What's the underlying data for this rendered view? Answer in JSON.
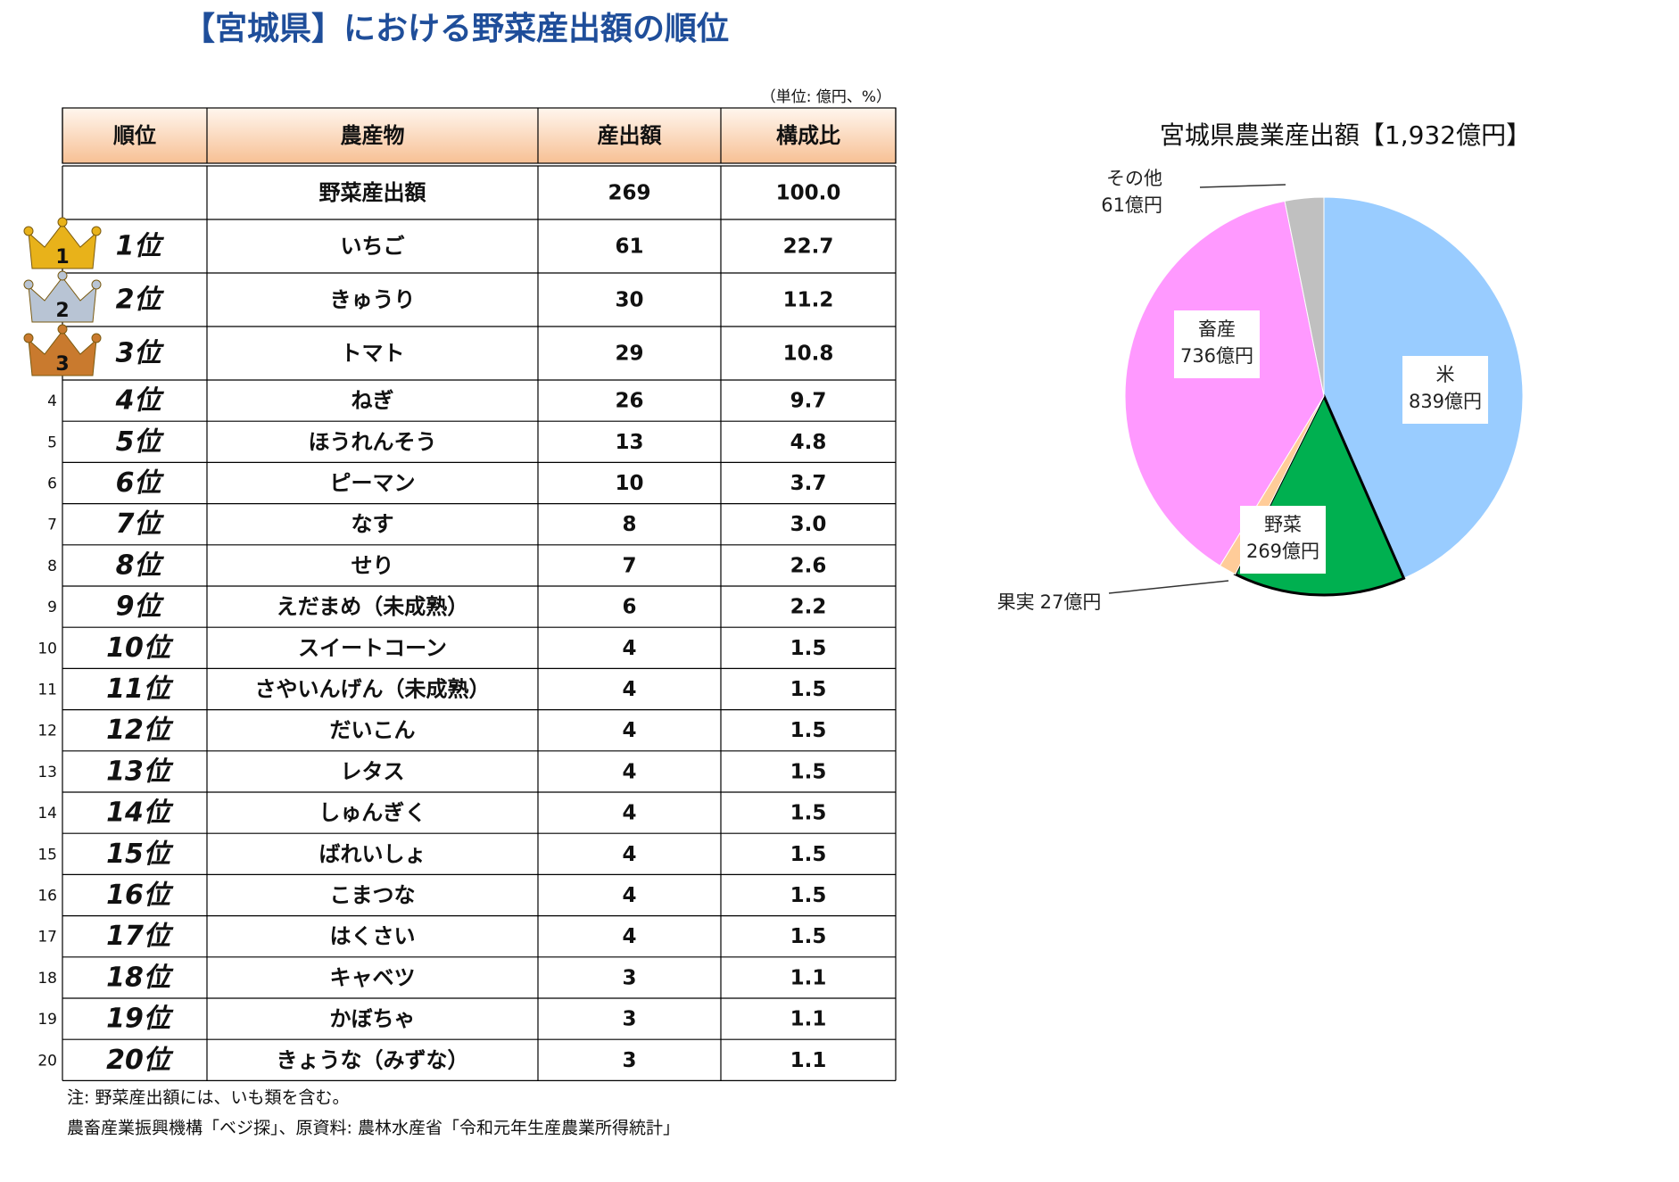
{
  "header": {
    "title": "【宮城県】における野菜産出額の順位",
    "unit": "（単位: 億円、%）"
  },
  "table": {
    "columns": [
      "順位",
      "農産物",
      "産出額",
      "構成比"
    ],
    "rows": [
      {
        "crop": "野菜産出額",
        "value": 269,
        "share": "100.0"
      },
      {
        "side": "1",
        "rank": "1位",
        "crop": "いちご",
        "value": 61,
        "share": "22.7"
      },
      {
        "side": "2",
        "rank": "2位",
        "crop": "きゅうり",
        "value": 30,
        "share": "11.2"
      },
      {
        "side": "3",
        "rank": "3位",
        "crop": "トマト",
        "value": 29,
        "share": "10.8"
      },
      {
        "side": "4",
        "rank": "4位",
        "crop": "ねぎ",
        "value": 26,
        "share": "9.7"
      },
      {
        "side": "5",
        "rank": "5位",
        "crop": "ほうれんそう",
        "value": 13,
        "share": "4.8"
      },
      {
        "side": "6",
        "rank": "6位",
        "crop": "ピーマン",
        "value": 10,
        "share": "3.7"
      },
      {
        "side": "7",
        "rank": "7位",
        "crop": "なす",
        "value": 8,
        "share": "3.0"
      },
      {
        "side": "8",
        "rank": "8位",
        "crop": "せり",
        "value": 7,
        "share": "2.6"
      },
      {
        "side": "9",
        "rank": "9位",
        "crop": "えだまめ（未成熟）",
        "value": 6,
        "share": "2.2"
      },
      {
        "side": "10",
        "rank": "10位",
        "crop": "スイートコーン",
        "value": 4,
        "share": "1.5"
      },
      {
        "side": "11",
        "rank": "11位",
        "crop": "さやいんげん（未成熟）",
        "value": 4,
        "share": "1.5"
      },
      {
        "side": "12",
        "rank": "12位",
        "crop": "だいこん",
        "value": 4,
        "share": "1.5"
      },
      {
        "side": "13",
        "rank": "13位",
        "crop": "レタス",
        "value": 4,
        "share": "1.5"
      },
      {
        "side": "14",
        "rank": "14位",
        "crop": "しゅんぎく",
        "value": 4,
        "share": "1.5"
      },
      {
        "side": "15",
        "rank": "15位",
        "crop": "ばれいしょ",
        "value": 4,
        "share": "1.5"
      },
      {
        "side": "16",
        "rank": "16位",
        "crop": "こまつな",
        "value": 4,
        "share": "1.5"
      },
      {
        "side": "17",
        "rank": "17位",
        "crop": "はくさい",
        "value": 4,
        "share": "1.5"
      },
      {
        "side": "18",
        "rank": "18位",
        "crop": "キャベツ",
        "value": 3,
        "share": "1.1"
      },
      {
        "side": "19",
        "rank": "19位",
        "crop": "かぼちゃ",
        "value": 3,
        "share": "1.1"
      },
      {
        "side": "20",
        "rank": "20位",
        "crop": "きょうな（みずな）",
        "value": 3,
        "share": "1.1"
      }
    ]
  },
  "notes": [
    "注: 野菜産出額には、いも類を含む。",
    "農畜産業振興機構「ベジ探」、原資料: 農林水産省「令和元年生産農業所得統計」"
  ],
  "chart_data": {
    "type": "pie",
    "title": "宮城県農業産出額【1,932億円】",
    "categories": [
      "米",
      "野菜",
      "果実",
      "畜産",
      "その他"
    ],
    "values": [
      839,
      269,
      27,
      736,
      61
    ],
    "value_labels": [
      "839億円",
      "269億円",
      "27億円",
      "736億円",
      "61億円"
    ],
    "colors": [
      "#99ccff",
      "#00b050",
      "#ffcc99",
      "#ff99ff",
      "#c0c0c0"
    ]
  }
}
